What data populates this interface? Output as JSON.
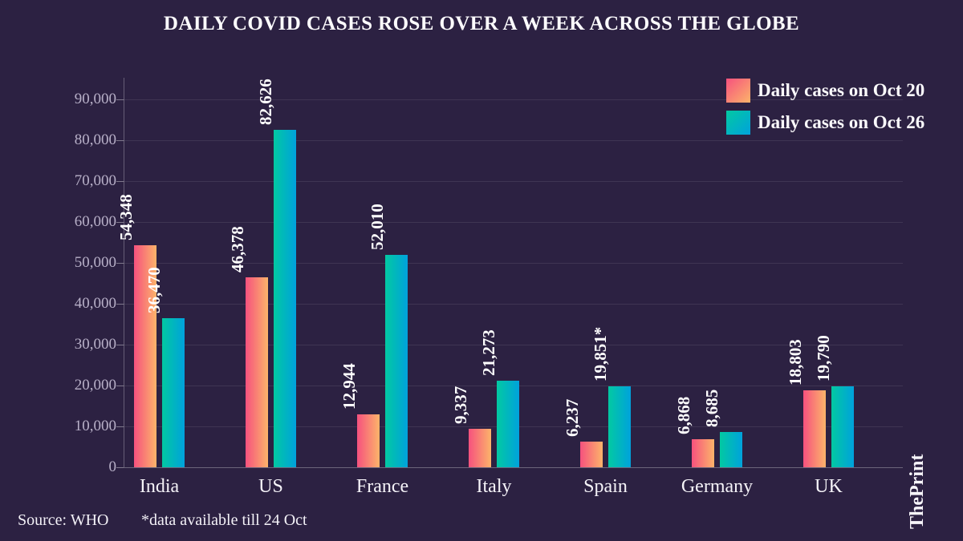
{
  "title": "DAILY COVID CASES ROSE OVER A WEEK ACROSS THE GLOBE",
  "chart_data": {
    "type": "bar",
    "categories": [
      "India",
      "US",
      "France",
      "Italy",
      "Spain",
      "Germany",
      "UK"
    ],
    "series": [
      {
        "name": "Daily cases on Oct 20",
        "values": [
          54348,
          46378,
          12944,
          9337,
          6237,
          6868,
          18803
        ],
        "labels": [
          "54,348",
          "46,378",
          "12,944",
          "9,337",
          "6,237",
          "6,868",
          "18,803"
        ],
        "gradient_start": "#f6517e",
        "gradient_end": "#fcb46a"
      },
      {
        "name": "Daily cases on Oct 26",
        "values": [
          36470,
          82626,
          52010,
          21273,
          19851,
          8685,
          19790
        ],
        "labels": [
          "36,470",
          "82,626",
          "52,010",
          "21,273",
          "19,851*",
          "8,685",
          "19,790"
        ],
        "gradient_start": "#02c9a2",
        "gradient_end": "#00a2dc"
      }
    ],
    "ylim": [
      0,
      90000
    ],
    "yticks": [
      0,
      10000,
      20000,
      30000,
      40000,
      50000,
      60000,
      70000,
      80000,
      90000
    ],
    "ytick_labels": [
      "0",
      "10,000",
      "20,000",
      "30,000",
      "40,000",
      "50,000",
      "60,000",
      "70,000",
      "80,000",
      "90,000"
    ],
    "grid": true,
    "legend_position": "top-right"
  },
  "footer": {
    "source": "Source: WHO",
    "footnote": "*data available till 24 Oct"
  },
  "brand": "ThePrint",
  "colors": {
    "background": "#2c2142",
    "grid": "rgba(255,255,255,0.09)",
    "axis": "rgba(255,255,255,0.28)",
    "ytick_text": "#b8b0c8",
    "text": "#fdfcfe"
  }
}
